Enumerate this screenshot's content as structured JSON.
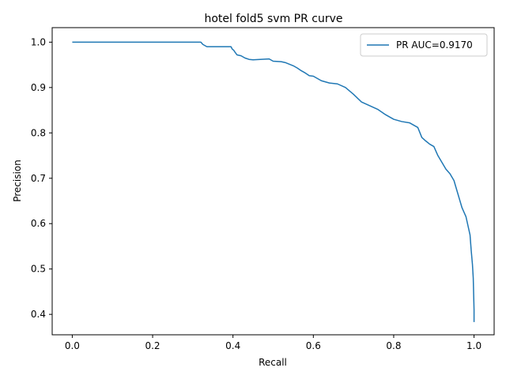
{
  "chart_data": {
    "type": "line",
    "title": "hotel fold5 svm PR curve",
    "xlabel": "Recall",
    "ylabel": "Precision",
    "xlim": [
      -0.05,
      1.05
    ],
    "ylim": [
      0.355,
      1.032
    ],
    "xticks": [
      "0.0",
      "0.2",
      "0.4",
      "0.6",
      "0.8",
      "1.0"
    ],
    "yticks": [
      "0.4",
      "0.5",
      "0.6",
      "0.7",
      "0.8",
      "0.9",
      "1.0"
    ],
    "grid": false,
    "legend_position": "top-right",
    "series": [
      {
        "name": "PR AUC=0.9170",
        "color": "#1f77b4",
        "x": [
          0.0,
          0.32,
          0.325,
          0.335,
          0.395,
          0.398,
          0.402,
          0.405,
          0.41,
          0.42,
          0.43,
          0.44,
          0.45,
          0.49,
          0.5,
          0.52,
          0.53,
          0.55,
          0.56,
          0.57,
          0.58,
          0.59,
          0.6,
          0.62,
          0.64,
          0.66,
          0.68,
          0.7,
          0.72,
          0.74,
          0.76,
          0.78,
          0.8,
          0.82,
          0.84,
          0.86,
          0.87,
          0.88,
          0.89,
          0.9,
          0.91,
          0.92,
          0.93,
          0.94,
          0.95,
          0.96,
          0.97,
          0.975,
          0.98,
          0.985,
          0.99,
          0.993,
          0.996,
          0.998,
          0.999,
          1.0,
          1.0
        ],
        "y": [
          1.0,
          1.0,
          0.995,
          0.99,
          0.99,
          0.985,
          0.982,
          0.978,
          0.972,
          0.97,
          0.965,
          0.962,
          0.961,
          0.963,
          0.958,
          0.957,
          0.955,
          0.948,
          0.943,
          0.937,
          0.932,
          0.926,
          0.925,
          0.915,
          0.91,
          0.908,
          0.9,
          0.885,
          0.868,
          0.86,
          0.852,
          0.84,
          0.83,
          0.825,
          0.822,
          0.812,
          0.79,
          0.782,
          0.775,
          0.77,
          0.75,
          0.735,
          0.72,
          0.71,
          0.695,
          0.665,
          0.635,
          0.625,
          0.615,
          0.595,
          0.575,
          0.54,
          0.51,
          0.48,
          0.445,
          0.41,
          0.383
        ]
      }
    ]
  }
}
